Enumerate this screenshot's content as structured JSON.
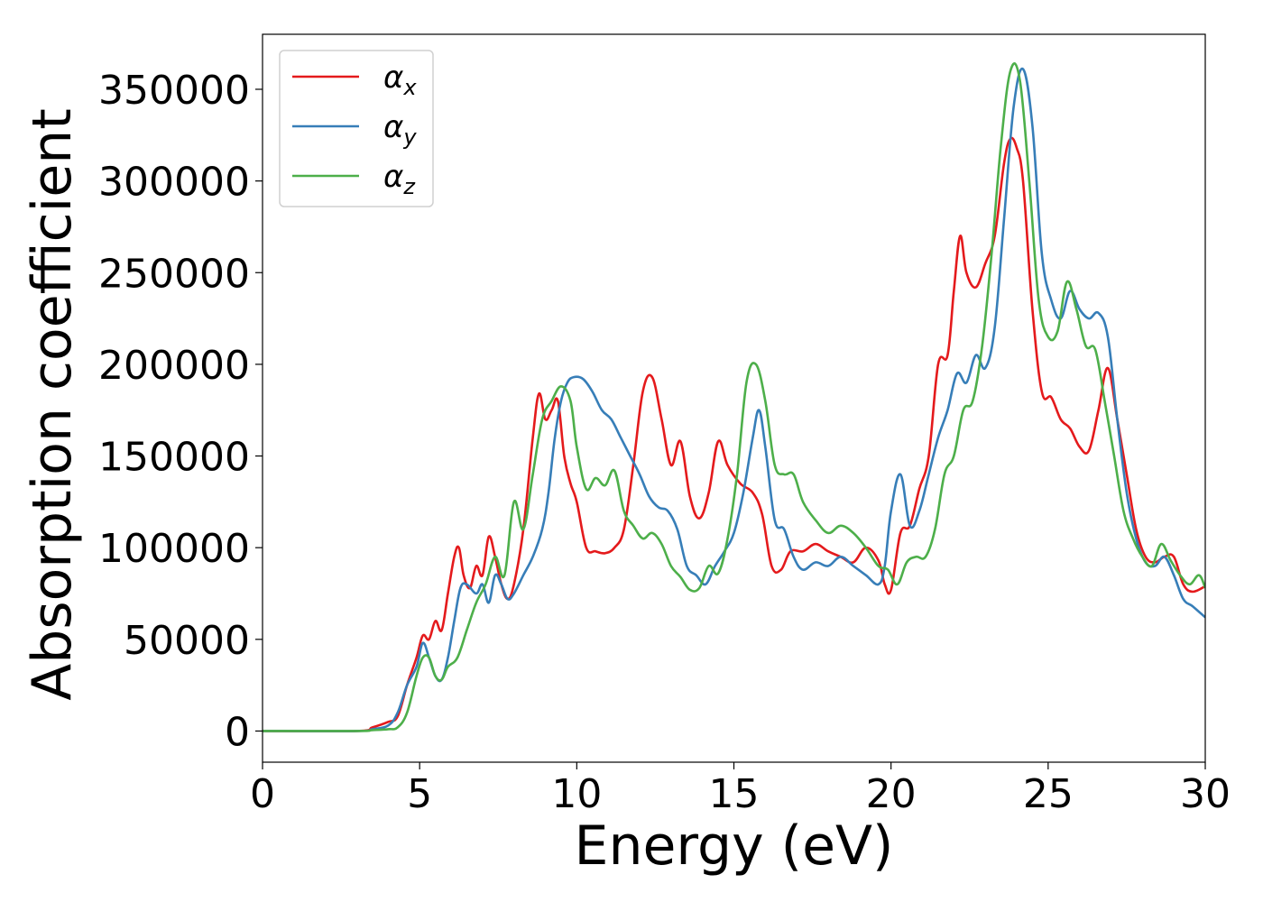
{
  "chart_data": {
    "type": "line",
    "title": "",
    "xlabel": "Energy (eV)",
    "ylabel": "Absorption coefficient",
    "xlim": [
      0,
      30
    ],
    "ylim": [
      -17000,
      380000
    ],
    "xticks": [
      0,
      5,
      10,
      15,
      20,
      25,
      30
    ],
    "yticks": [
      0,
      50000,
      100000,
      150000,
      200000,
      250000,
      300000,
      350000
    ],
    "grid": false,
    "legend": {
      "placement": "top-left",
      "entries": [
        "αx",
        "αy",
        "αz"
      ]
    },
    "series": [
      {
        "name": "αx",
        "symbol": "α",
        "subscript": "x",
        "color": "#e41a1c",
        "x": [
          0,
          3,
          3.5,
          4,
          4.3,
          4.6,
          4.9,
          5.1,
          5.3,
          5.5,
          5.7,
          5.9,
          6.1,
          6.25,
          6.4,
          6.6,
          6.8,
          7.0,
          7.2,
          7.4,
          7.6,
          7.8,
          8.0,
          8.3,
          8.6,
          8.8,
          9.0,
          9.2,
          9.4,
          9.6,
          9.8,
          10.0,
          10.3,
          10.6,
          10.9,
          11.2,
          11.5,
          11.8,
          12.1,
          12.4,
          12.7,
          13.0,
          13.3,
          13.6,
          13.9,
          14.2,
          14.5,
          14.8,
          15.2,
          15.6,
          15.9,
          16.2,
          16.5,
          16.8,
          17.2,
          17.6,
          18.0,
          18.4,
          18.8,
          19.2,
          19.6,
          19.8,
          20.0,
          20.3,
          20.6,
          20.9,
          21.2,
          21.5,
          21.8,
          22.0,
          22.2,
          22.4,
          22.7,
          23.0,
          23.3,
          23.6,
          23.8,
          24.0,
          24.2,
          24.5,
          24.8,
          25.1,
          25.4,
          25.7,
          26.0,
          26.3,
          26.6,
          26.9,
          27.2,
          27.5,
          27.8,
          28.1,
          28.4,
          28.7,
          29.0,
          29.3,
          29.6,
          30.0
        ],
        "y": [
          0,
          0,
          2000,
          5000,
          8000,
          25000,
          40000,
          52000,
          50000,
          60000,
          55000,
          75000,
          95000,
          100000,
          85000,
          78000,
          90000,
          85000,
          106000,
          95000,
          80000,
          72000,
          80000,
          110000,
          160000,
          184000,
          170000,
          175000,
          180000,
          150000,
          135000,
          125000,
          100000,
          98000,
          97000,
          100000,
          110000,
          145000,
          185000,
          193000,
          170000,
          145000,
          158000,
          128000,
          116000,
          130000,
          158000,
          145000,
          135000,
          130000,
          118000,
          90000,
          88000,
          98000,
          98000,
          102000,
          98000,
          95000,
          92000,
          100000,
          93000,
          80000,
          77000,
          108000,
          112000,
          132000,
          150000,
          200000,
          205000,
          240000,
          270000,
          250000,
          242000,
          255000,
          270000,
          310000,
          323000,
          318000,
          300000,
          230000,
          185000,
          182000,
          170000,
          165000,
          155000,
          153000,
          175000,
          198000,
          170000,
          140000,
          110000,
          95000,
          92000,
          95000,
          95000,
          80000,
          76000,
          79000
        ]
      },
      {
        "name": "αy",
        "symbol": "α",
        "subscript": "y",
        "color": "#377eb8",
        "x": [
          0,
          3,
          3.5,
          4,
          4.3,
          4.6,
          4.9,
          5.1,
          5.3,
          5.5,
          5.7,
          5.9,
          6.1,
          6.3,
          6.5,
          6.8,
          7.0,
          7.2,
          7.4,
          7.6,
          7.8,
          8.0,
          8.3,
          8.6,
          8.9,
          9.1,
          9.3,
          9.5,
          9.7,
          9.9,
          10.2,
          10.5,
          10.8,
          11.1,
          11.4,
          11.7,
          12.0,
          12.3,
          12.6,
          12.9,
          13.2,
          13.5,
          13.8,
          14.1,
          14.4,
          14.7,
          15.0,
          15.3,
          15.6,
          15.8,
          16.0,
          16.3,
          16.6,
          16.9,
          17.2,
          17.6,
          18.0,
          18.4,
          18.8,
          19.2,
          19.6,
          19.8,
          20.0,
          20.3,
          20.6,
          20.9,
          21.2,
          21.5,
          21.8,
          22.1,
          22.4,
          22.7,
          23.0,
          23.3,
          23.6,
          23.9,
          24.2,
          24.5,
          24.8,
          25.1,
          25.4,
          25.7,
          26.0,
          26.3,
          26.6,
          26.9,
          27.2,
          27.5,
          27.8,
          28.1,
          28.4,
          28.7,
          29.0,
          29.3,
          29.6,
          30.0
        ],
        "y": [
          0,
          0,
          1000,
          3000,
          10000,
          25000,
          35000,
          48000,
          40000,
          30000,
          28000,
          40000,
          60000,
          78000,
          80000,
          75000,
          80000,
          70000,
          85000,
          80000,
          72000,
          75000,
          85000,
          95000,
          110000,
          130000,
          160000,
          180000,
          190000,
          193000,
          192000,
          185000,
          175000,
          170000,
          160000,
          150000,
          140000,
          128000,
          122000,
          120000,
          110000,
          90000,
          85000,
          80000,
          90000,
          98000,
          108000,
          130000,
          160000,
          175000,
          155000,
          115000,
          110000,
          95000,
          88000,
          92000,
          90000,
          95000,
          90000,
          85000,
          80000,
          90000,
          120000,
          140000,
          112000,
          120000,
          140000,
          160000,
          175000,
          195000,
          190000,
          205000,
          198000,
          220000,
          280000,
          340000,
          361000,
          330000,
          260000,
          235000,
          225000,
          240000,
          230000,
          225000,
          228000,
          215000,
          170000,
          130000,
          105000,
          92000,
          90000,
          95000,
          85000,
          72000,
          68000,
          62000
        ]
      },
      {
        "name": "αz",
        "symbol": "α",
        "subscript": "z",
        "color": "#4daf4a",
        "x": [
          0,
          3,
          3.5,
          4,
          4.3,
          4.6,
          4.9,
          5.1,
          5.3,
          5.5,
          5.7,
          5.9,
          6.2,
          6.5,
          6.8,
          7.1,
          7.4,
          7.7,
          8.0,
          8.3,
          8.6,
          8.9,
          9.2,
          9.5,
          9.8,
          10.0,
          10.3,
          10.6,
          10.9,
          11.2,
          11.5,
          11.8,
          12.1,
          12.4,
          12.7,
          13.0,
          13.3,
          13.6,
          13.9,
          14.2,
          14.5,
          14.8,
          15.1,
          15.4,
          15.7,
          16.0,
          16.3,
          16.6,
          16.9,
          17.2,
          17.6,
          18.0,
          18.4,
          18.8,
          19.2,
          19.6,
          19.9,
          20.2,
          20.5,
          20.8,
          21.1,
          21.4,
          21.7,
          22.0,
          22.3,
          22.6,
          22.9,
          23.2,
          23.5,
          23.8,
          24.1,
          24.4,
          24.7,
          25.0,
          25.3,
          25.6,
          25.9,
          26.2,
          26.5,
          26.8,
          27.1,
          27.4,
          27.7,
          28.0,
          28.3,
          28.6,
          28.9,
          29.2,
          29.5,
          29.8,
          30.0
        ],
        "y": [
          0,
          0,
          500,
          1000,
          2000,
          10000,
          30000,
          40000,
          40000,
          30000,
          28000,
          35000,
          40000,
          55000,
          70000,
          80000,
          95000,
          85000,
          125000,
          110000,
          140000,
          170000,
          180000,
          188000,
          180000,
          155000,
          132000,
          138000,
          134000,
          142000,
          120000,
          112000,
          105000,
          108000,
          102000,
          90000,
          84000,
          77000,
          78000,
          90000,
          86000,
          105000,
          140000,
          190000,
          200000,
          180000,
          145000,
          140000,
          140000,
          125000,
          115000,
          108000,
          112000,
          108000,
          100000,
          90000,
          88000,
          80000,
          92000,
          95000,
          95000,
          110000,
          140000,
          150000,
          175000,
          180000,
          210000,
          260000,
          320000,
          360000,
          355000,
          300000,
          235000,
          215000,
          218000,
          245000,
          230000,
          210000,
          208000,
          180000,
          150000,
          120000,
          105000,
          95000,
          90000,
          102000,
          93000,
          85000,
          80000,
          85000,
          78000
        ]
      }
    ]
  }
}
